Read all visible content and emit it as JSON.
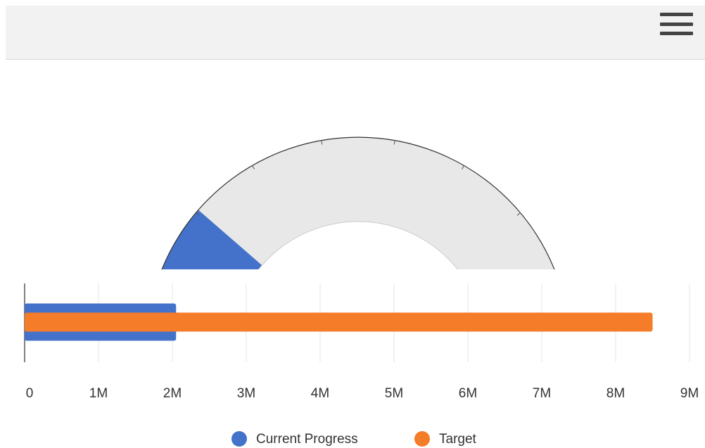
{
  "chart_data": {
    "type": "bar",
    "orientation": "horizontal",
    "series": [
      {
        "name": "Current Progress",
        "color": "#4472ca",
        "values": [
          2050000
        ]
      },
      {
        "name": "Target",
        "color": "#f57c28",
        "values": [
          8500000
        ]
      }
    ],
    "xlim": [
      0,
      9000000
    ],
    "xticks": [
      0,
      {
        "value": 1000000,
        "label": "1M"
      },
      {
        "value": 2000000,
        "label": "2M"
      },
      {
        "value": 3000000,
        "label": "3M"
      },
      {
        "value": 4000000,
        "label": "4M"
      },
      {
        "value": 5000000,
        "label": "5M"
      },
      {
        "value": 6000000,
        "label": "6M"
      },
      {
        "value": 7000000,
        "label": "7M"
      },
      {
        "value": 8000000,
        "label": "8M"
      },
      {
        "value": 9000000,
        "label": "9M"
      }
    ],
    "grid": true,
    "legend": "bottom"
  }
}
